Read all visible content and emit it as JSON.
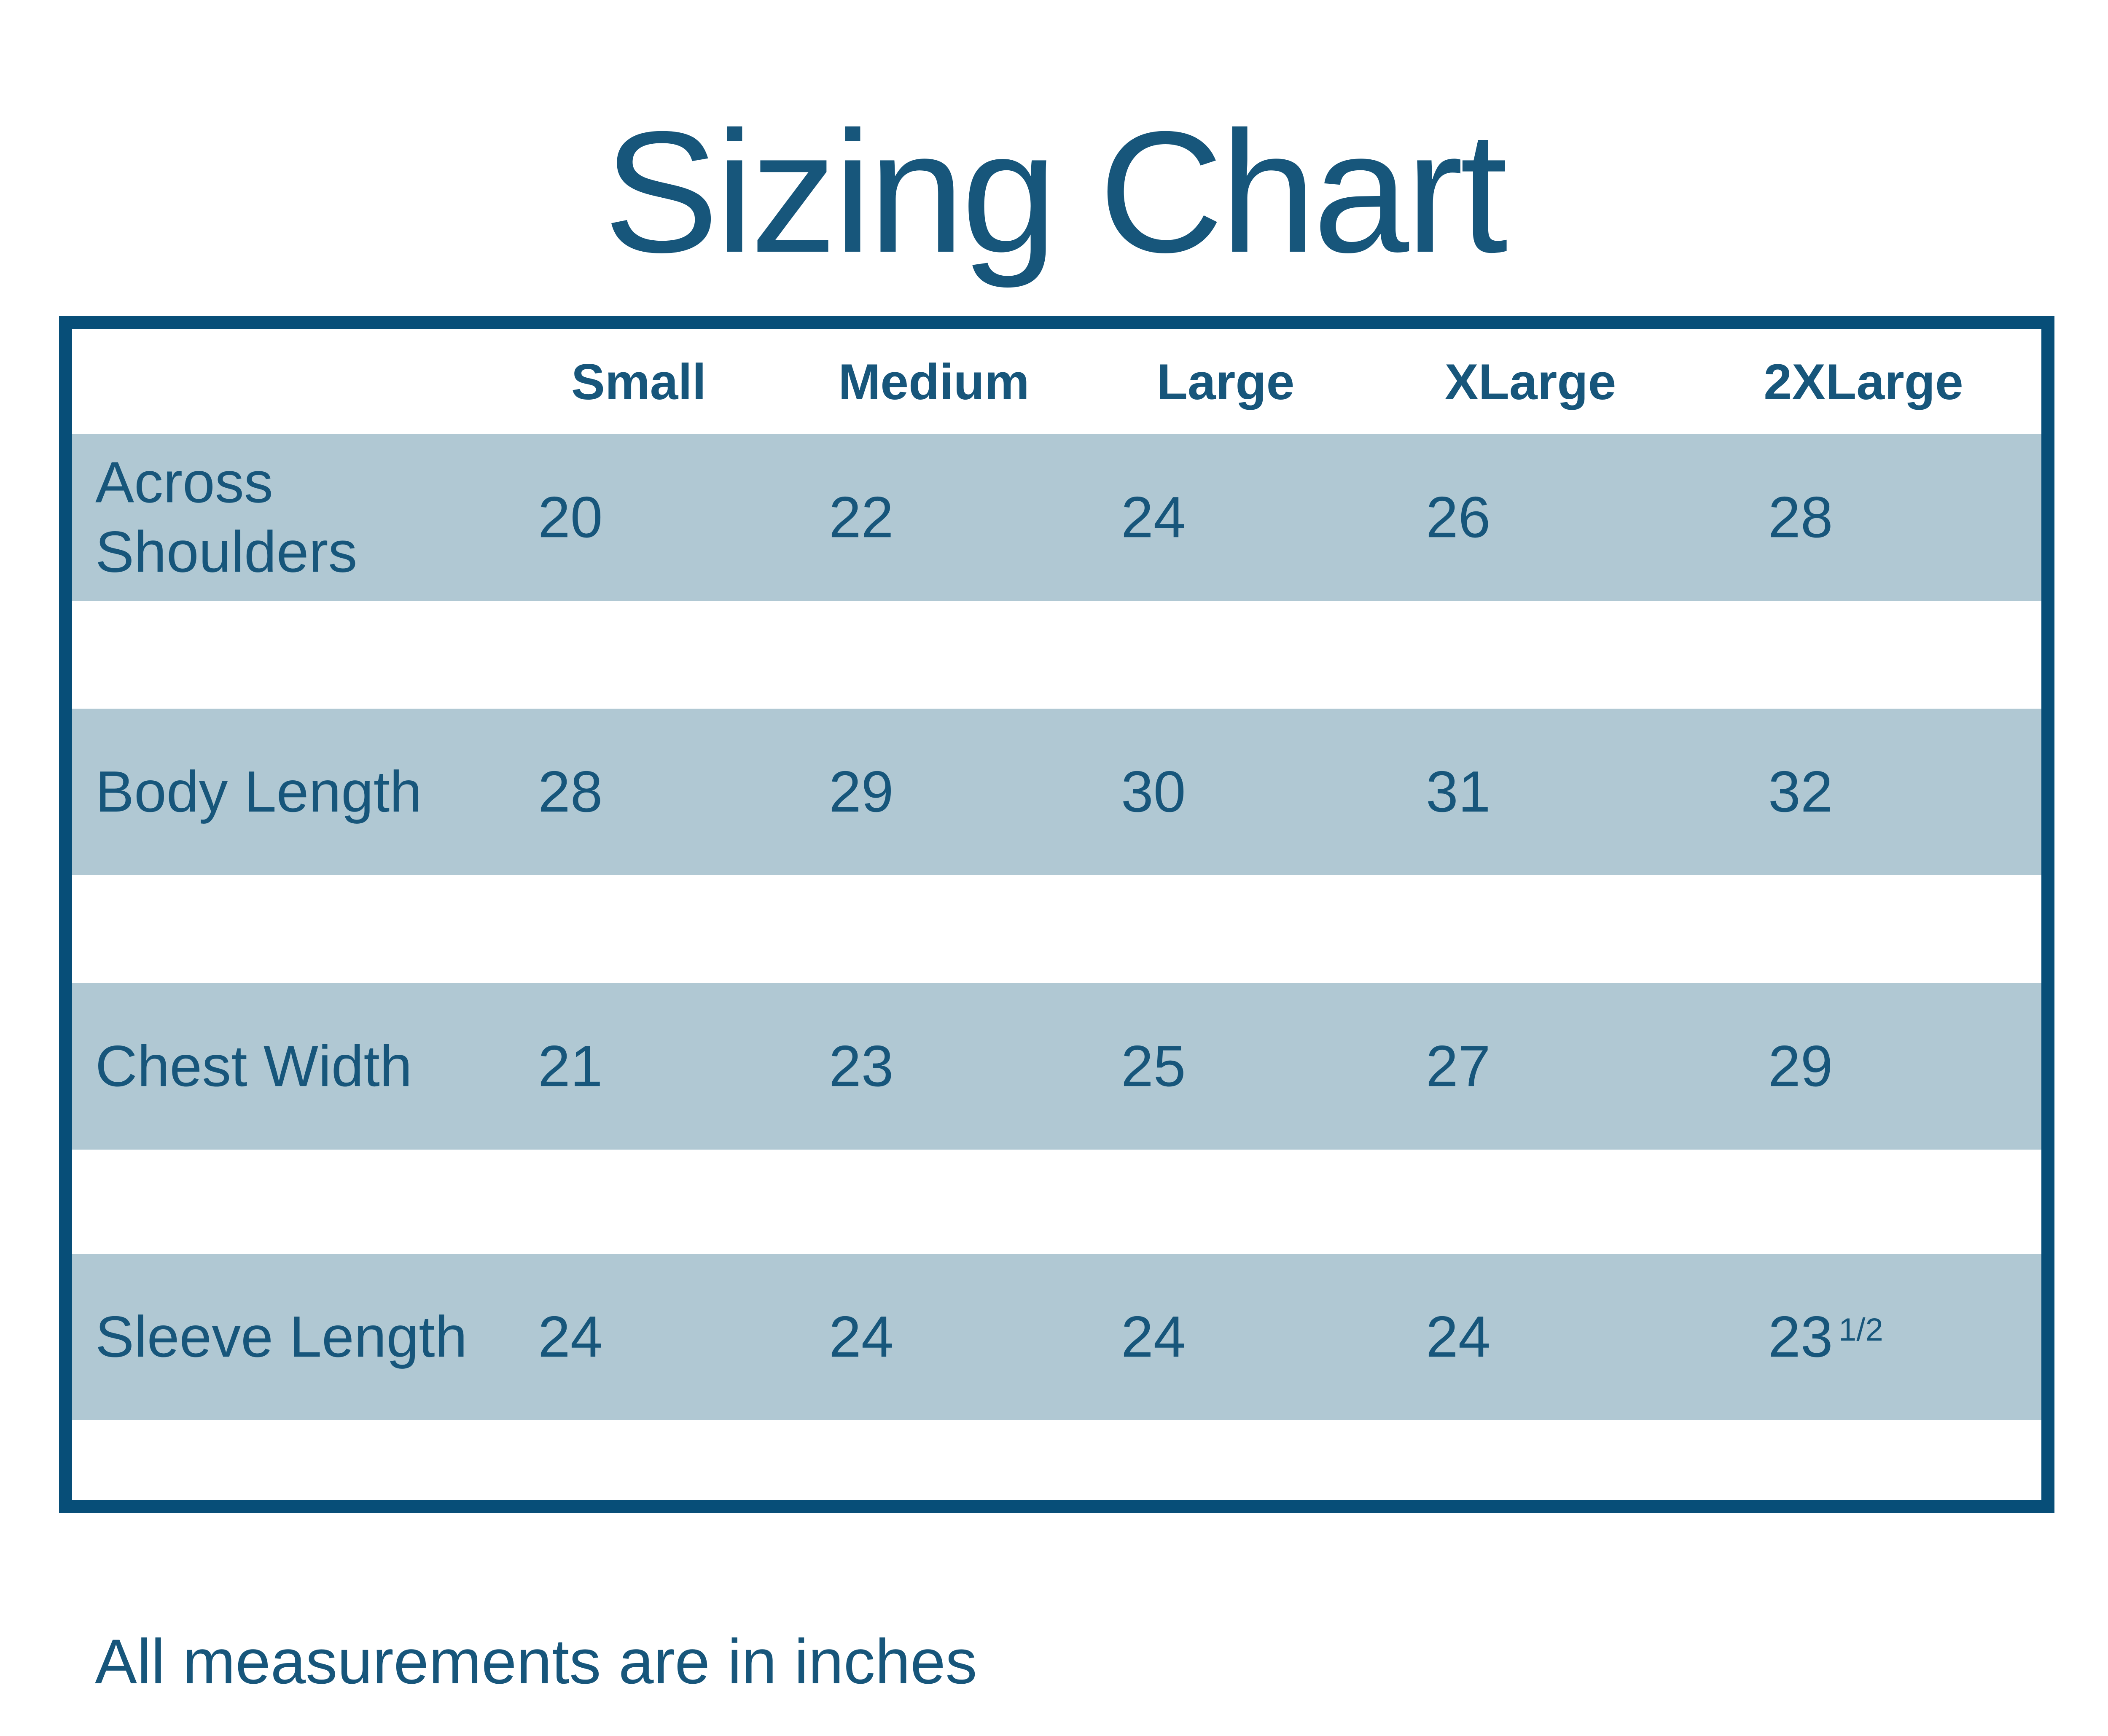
{
  "title": "Sizing Chart",
  "footnote": "All measurements are in inches",
  "colors": {
    "text": "#17567b",
    "border": "#074e78",
    "band": "#b0c8d3",
    "background": "#ffffff"
  },
  "table": {
    "headers": [
      "Small",
      "Medium",
      "Large",
      "XLarge",
      "2XLarge"
    ],
    "rows": [
      {
        "label_lines": [
          "Across",
          "Shoulders"
        ],
        "values": [
          "20",
          "22",
          "24",
          "26",
          "28"
        ]
      },
      {
        "label": "Body Length",
        "values": [
          "28",
          "29",
          "30",
          "31",
          "32"
        ]
      },
      {
        "label": "Chest Width",
        "values": [
          "21",
          "23",
          "25",
          "27",
          "29"
        ]
      },
      {
        "label": "Sleeve Length",
        "values": [
          "24",
          "24",
          "24",
          "24",
          "23"
        ],
        "last_value_sup": "1/2"
      }
    ]
  },
  "chart_data": {
    "type": "table",
    "title": "Sizing Chart",
    "categories": [
      "Small",
      "Medium",
      "Large",
      "XLarge",
      "2XLarge"
    ],
    "series": [
      {
        "name": "Across Shoulders",
        "values": [
          20,
          22,
          24,
          26,
          28
        ]
      },
      {
        "name": "Body Length",
        "values": [
          28,
          29,
          30,
          31,
          32
        ]
      },
      {
        "name": "Chest Width",
        "values": [
          21,
          23,
          25,
          27,
          29
        ]
      },
      {
        "name": "Sleeve Length",
        "values": [
          24,
          24,
          24,
          24,
          23.5
        ]
      }
    ],
    "units": "inches",
    "note": "All measurements are in inches"
  }
}
